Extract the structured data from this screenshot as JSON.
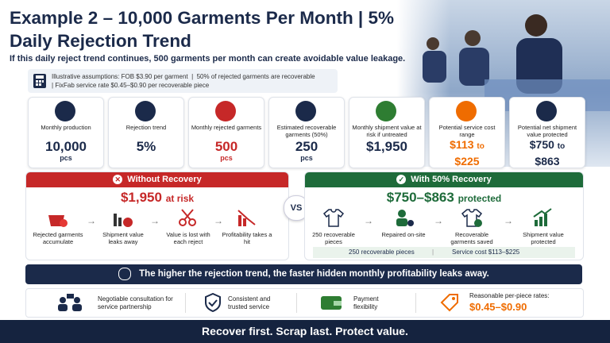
{
  "header": {
    "title": "Example 2 – 10,000 Garments Per Month | 5% Daily Rejection Trend",
    "subtitle": "If this daily reject trend continues, 500 garments per month can create avoidable value leakage."
  },
  "assumptions": [
    "Illustrative assumptions: FOB $3.90 per garment",
    "50% of rejected garments are recoverable",
    "FixFab service rate $0.45–$0.90 per recoverable piece"
  ],
  "kpis": [
    {
      "label": "Monthly production",
      "value": "10,000",
      "unit": "pcs"
    },
    {
      "label": "Rejection trend",
      "value": "5%"
    },
    {
      "label": "Monthly rejected garments",
      "value": "500",
      "unit": "pcs"
    },
    {
      "label": "Estimated recoverable garments (50%)",
      "value": "250",
      "unit": "pcs"
    },
    {
      "label": "Monthly shipment value at risk if untreated",
      "value": "$1,950"
    },
    {
      "label": "Potential service cost range",
      "value": "$113",
      "to": "to",
      "value2": "$225"
    },
    {
      "label": "Potential net shipment value protected",
      "value": "$750",
      "to": "to",
      "value2": "$863"
    }
  ],
  "without": {
    "title": "Without Recovery",
    "headline": "$1,950",
    "headline_suffix": "at risk",
    "steps": [
      "Rejected garments accumulate",
      "Shipment value leaks away",
      "Value is lost with each reject",
      "Profitability takes a hit"
    ]
  },
  "vs": "VS",
  "with": {
    "title": "With 50% Recovery",
    "headline": "$750–$863",
    "headline_suffix": "protected",
    "steps": [
      "250 recoverable pieces",
      "Repaired on-site",
      "Recoverable garments saved",
      "Shipment value protected"
    ],
    "notes": [
      "250 recoverable pieces",
      "Service cost $113–$225"
    ]
  },
  "banner": "The higher the rejection trend, the faster hidden monthly profitability leaks away.",
  "features": [
    "Negotiable consultation for service partnership",
    "Consistent and trusted service",
    "Payment flexibility"
  ],
  "rates": {
    "label": "Reasonable per-piece rates:",
    "value": "$0.45–$0.90"
  },
  "footer": "Recover first. Scrap last. Protect value."
}
